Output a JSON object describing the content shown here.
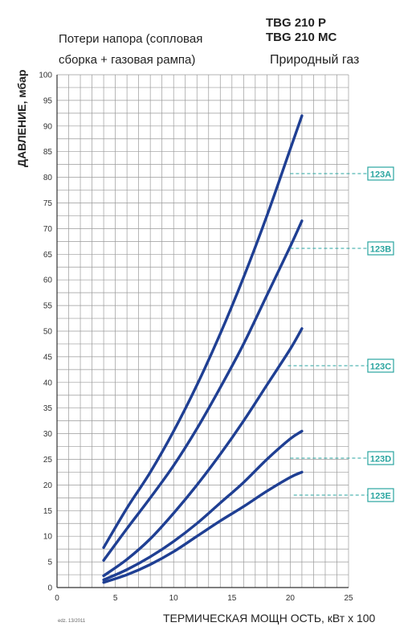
{
  "header": {
    "subtitle_line1": "Потери напора (сопловая",
    "subtitle_line2": "сборка + газовая рампа)",
    "model_line1": "TBG 210 P",
    "model_line2": "TBG 210 MC",
    "gas_type": "Природный газ"
  },
  "footer": {
    "note": "edz. 13/2011"
  },
  "chart_data": {
    "type": "line",
    "xlabel": "ТЕРМИЧЕСКАЯ МОЩН ОСТЬ, кВт х 100",
    "ylabel": "ДАВЛЕНИЕ, мбар",
    "xlim": [
      0,
      25
    ],
    "ylim": [
      0,
      100
    ],
    "x_ticks": [
      "0",
      "5",
      "10",
      "15",
      "20",
      "25"
    ],
    "y_ticks": [
      "0",
      "5",
      "10",
      "15",
      "20",
      "25",
      "30",
      "35",
      "40",
      "45",
      "50",
      "55",
      "60",
      "65",
      "70",
      "75",
      "80",
      "85",
      "90",
      "95",
      "100"
    ],
    "grid": true,
    "line_color": "#1f3f93",
    "label_color": "#2aa5a0",
    "series": [
      {
        "name": "123A",
        "x": [
          4,
          6,
          8,
          10,
          12,
          14,
          16,
          18,
          20,
          21
        ],
        "y": [
          7.8,
          15.5,
          22.5,
          30.5,
          39.5,
          49.5,
          60.5,
          72.5,
          85.5,
          92
        ]
      },
      {
        "name": "123B",
        "x": [
          4,
          6,
          8,
          10,
          12,
          14,
          16,
          18,
          20,
          21
        ],
        "y": [
          5.3,
          11.5,
          17.5,
          23.8,
          31.0,
          39.0,
          47.5,
          57.0,
          66.5,
          71.5
        ]
      },
      {
        "name": "123C",
        "x": [
          4,
          6,
          8,
          10,
          12,
          14,
          16,
          18,
          20,
          21
        ],
        "y": [
          2.3,
          5.5,
          9.5,
          14.5,
          20.0,
          26.0,
          32.5,
          39.5,
          46.5,
          50.5
        ]
      },
      {
        "name": "123D",
        "x": [
          4,
          6,
          8,
          10,
          12,
          14,
          16,
          18,
          20,
          21
        ],
        "y": [
          1.5,
          3.5,
          6.0,
          9.0,
          12.5,
          16.5,
          20.5,
          25.0,
          29.0,
          30.5
        ]
      },
      {
        "name": "123E",
        "x": [
          4,
          6,
          8,
          10,
          12,
          14,
          16,
          18,
          20,
          21
        ],
        "y": [
          1.0,
          2.5,
          4.5,
          7.0,
          10.0,
          13.0,
          15.8,
          18.8,
          21.5,
          22.5
        ]
      }
    ]
  }
}
